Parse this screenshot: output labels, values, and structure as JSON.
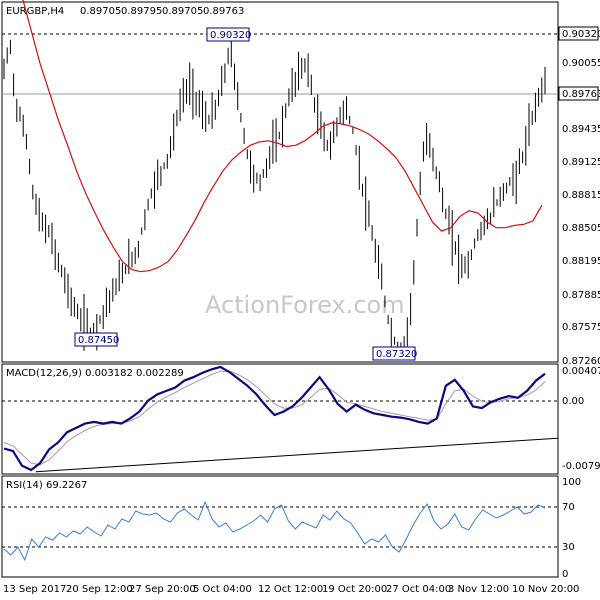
{
  "chart_data": [
    {
      "type": "ohlc",
      "title": "EURGBP,H4",
      "ohlc": [
        "0.89705",
        "0.89795",
        "0.89705",
        "0.89763"
      ],
      "y_ticks": [
        "0.90320",
        "0.90055",
        "0.89435",
        "0.89125",
        "0.88815",
        "0.88505",
        "0.88195",
        "0.87885",
        "0.87575",
        "0.87260"
      ],
      "ylim": [
        0.8726,
        0.9045
      ],
      "current_price": "0.89763",
      "resistance_level": "0.90320",
      "annotations": [
        {
          "text": "0.87450",
          "value": 0.8745
        },
        {
          "text": "0.90320",
          "value": 0.9032
        },
        {
          "text": "0.87320",
          "value": 0.8732
        }
      ],
      "watermark": "ActionForex.com",
      "price_close_series": [
        0.8983,
        0.901,
        0.8955,
        0.894,
        0.8918,
        0.8875,
        0.8855,
        0.8845,
        0.8838,
        0.882,
        0.8805,
        0.879,
        0.8775,
        0.8765,
        0.8759,
        0.8752,
        0.8758,
        0.877,
        0.8782,
        0.879,
        0.88,
        0.881,
        0.8818,
        0.8825,
        0.885,
        0.887,
        0.8885,
        0.8895,
        0.8905,
        0.8925,
        0.8948,
        0.8965,
        0.897,
        0.896,
        0.8948,
        0.894,
        0.8945,
        0.896,
        0.8985,
        0.9005,
        0.8965,
        0.8935,
        0.8905,
        0.889,
        0.8885,
        0.8898,
        0.8915,
        0.892,
        0.894,
        0.896,
        0.8975,
        0.8985,
        0.8992,
        0.8965,
        0.894,
        0.8925,
        0.8915,
        0.8932,
        0.895,
        0.8948,
        0.893,
        0.89,
        0.887,
        0.8845,
        0.882,
        0.8795,
        0.8765,
        0.8745,
        0.8738,
        0.8742,
        0.878,
        0.8845,
        0.891,
        0.8925,
        0.8902,
        0.888,
        0.8855,
        0.8838,
        0.882,
        0.881,
        0.8815,
        0.8832,
        0.8845,
        0.8848,
        0.886,
        0.887,
        0.8878,
        0.8885,
        0.889,
        0.8905,
        0.8925,
        0.8945,
        0.8965,
        0.8976
      ],
      "ma_series": [
        0.905,
        0.902,
        0.899,
        0.8965,
        0.894,
        0.8918,
        0.8895,
        0.8875,
        0.8858,
        0.8842,
        0.8828,
        0.8815,
        0.8808,
        0.8806,
        0.8807,
        0.881,
        0.8815,
        0.8825,
        0.8838,
        0.8852,
        0.8868,
        0.8882,
        0.8895,
        0.8905,
        0.8912,
        0.8918,
        0.8921,
        0.8922,
        0.892,
        0.8917,
        0.8918,
        0.8922,
        0.8928,
        0.8935,
        0.8938,
        0.8937,
        0.8935,
        0.8932,
        0.8928,
        0.8922,
        0.8915,
        0.8907,
        0.8895,
        0.888,
        0.8865,
        0.885,
        0.8842,
        0.8845,
        0.8855,
        0.886,
        0.8858,
        0.885,
        0.8845,
        0.8845,
        0.8847,
        0.8848,
        0.8851,
        0.8865
      ]
    },
    {
      "type": "line",
      "title": "MACD(12,26,9) 0.003182 0.002289",
      "y_ticks": [
        "0.004076",
        "0.00",
        "-0.007956"
      ],
      "ylim": [
        -0.008,
        0.0041
      ],
      "macd_series": [
        -0.0055,
        -0.0058,
        -0.0075,
        -0.008,
        -0.0072,
        -0.0056,
        -0.0048,
        -0.0036,
        -0.0031,
        -0.0026,
        -0.0024,
        -0.0026,
        -0.0024,
        -0.0026,
        -0.002,
        -0.0012,
        0.0001,
        0.0008,
        0.0012,
        0.0016,
        0.0024,
        0.0028,
        0.0033,
        0.0037,
        0.004,
        0.0034,
        0.0026,
        0.0018,
        0.0008,
        -0.0005,
        -0.0016,
        -0.0012,
        -0.0006,
        0.0004,
        0.0016,
        0.0028,
        0.0014,
        -0.0003,
        -0.0012,
        -0.0004,
        -0.001,
        -0.0014,
        -0.0016,
        -0.0018,
        -0.0019,
        -0.0021,
        -0.0024,
        -0.0026,
        -0.002,
        0.0018,
        0.0025,
        0.0012,
        -0.0006,
        -0.0008,
        -0.0001,
        0.0003,
        0.0006,
        0.0004,
        0.0012,
        0.0024,
        0.0032
      ],
      "signal_series": [
        -0.0048,
        -0.0052,
        -0.0062,
        -0.0072,
        -0.0074,
        -0.0068,
        -0.0058,
        -0.0047,
        -0.004,
        -0.0034,
        -0.0029,
        -0.0027,
        -0.0026,
        -0.0026,
        -0.0023,
        -0.0018,
        -0.0009,
        -0.0001,
        0.0005,
        0.001,
        0.0016,
        0.0021,
        0.0026,
        0.0031,
        0.0035,
        0.0035,
        0.0031,
        0.0025,
        0.0017,
        0.0007,
        -0.0003,
        -0.0008,
        -0.0008,
        -0.0004,
        0.0004,
        0.0014,
        0.0015,
        0.0008,
        -0.0001,
        -0.0003,
        -0.0006,
        -0.0009,
        -0.0012,
        -0.0014,
        -0.0016,
        -0.0018,
        -0.002,
        -0.0022,
        -0.0021,
        -0.0003,
        0.0012,
        0.0014,
        0.0006,
        0.0,
        -0.0002,
        0.0,
        0.0003,
        0.0004,
        0.0007,
        0.0013,
        0.0023
      ],
      "trendline": {
        "from": -0.0082,
        "to": -0.0043
      }
    },
    {
      "type": "line",
      "title": "RSI(14) 69.2267",
      "y_ticks": [
        "100",
        "70",
        "30",
        "0"
      ],
      "ylim": [
        0,
        100
      ],
      "rsi_series": [
        28,
        22,
        30,
        17,
        38,
        30,
        40,
        37,
        44,
        40,
        46,
        43,
        50,
        45,
        41,
        52,
        48,
        58,
        55,
        66,
        63,
        62,
        64,
        58,
        55,
        64,
        68,
        62,
        57,
        75,
        58,
        50,
        54,
        45,
        48,
        52,
        56,
        62,
        55,
        68,
        72,
        56,
        48,
        55,
        52,
        49,
        62,
        57,
        66,
        58,
        54,
        44,
        33,
        38,
        35,
        42,
        30,
        25,
        38,
        52,
        64,
        73,
        56,
        48,
        53,
        63,
        50,
        47,
        58,
        67,
        63,
        59,
        62,
        66,
        70,
        63,
        65,
        72,
        69
      ],
      "x_ticks": [
        "13 Sep 2017",
        "20 Sep 12:00",
        "27 Sep 20:00",
        "5 Oct 04:00",
        "12 Oct 12:00",
        "19 Oct 20:00",
        "27 Oct 04:00",
        "3 Nov 12:00",
        "10 Nov 20:00"
      ]
    }
  ]
}
